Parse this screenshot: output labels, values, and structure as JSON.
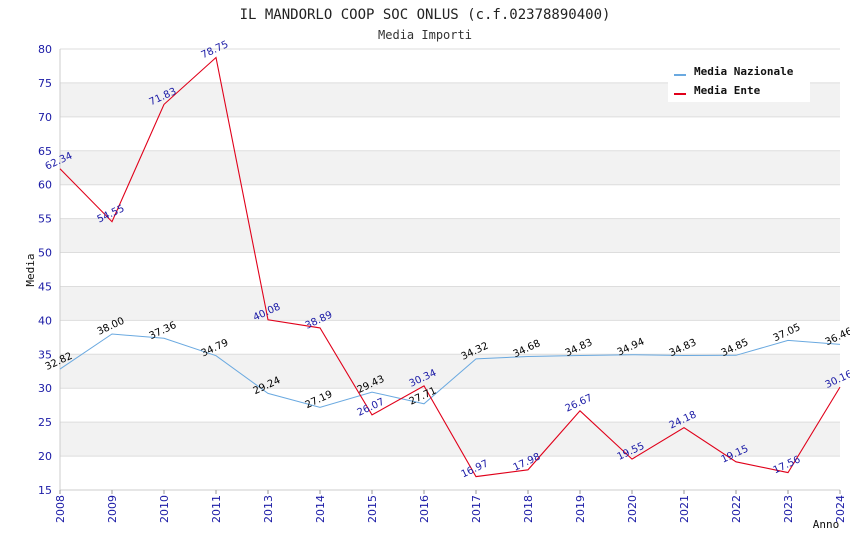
{
  "chart_data": {
    "type": "line",
    "title": "IL MANDORLO COOP SOC ONLUS (c.f.02378890400)",
    "subtitle": "Media Importi",
    "xlabel": "Anno",
    "ylabel": "Media",
    "ylim": [
      15,
      80
    ],
    "ytick_step": 5,
    "grid": true,
    "legend_position": "top-right",
    "categories": [
      "2008",
      "2009",
      "2010",
      "2011",
      "2013",
      "2014",
      "2015",
      "2016",
      "2017",
      "2018",
      "2019",
      "2020",
      "2021",
      "2022",
      "2023",
      "2024"
    ],
    "series": [
      {
        "name": "Media Nazionale",
        "color": "#6aa9e0",
        "label_color": "#000000",
        "values": [
          32.82,
          38.0,
          37.36,
          34.79,
          29.24,
          27.19,
          29.43,
          27.71,
          34.32,
          34.68,
          34.83,
          34.94,
          34.83,
          34.85,
          37.05,
          36.46
        ]
      },
      {
        "name": "Media Ente",
        "color": "#e0001a",
        "label_color": "#1a1aa6",
        "values": [
          62.34,
          54.55,
          71.83,
          78.75,
          40.08,
          38.89,
          26.07,
          30.34,
          16.97,
          17.98,
          26.67,
          19.55,
          24.18,
          19.15,
          17.56,
          30.16
        ]
      }
    ]
  }
}
